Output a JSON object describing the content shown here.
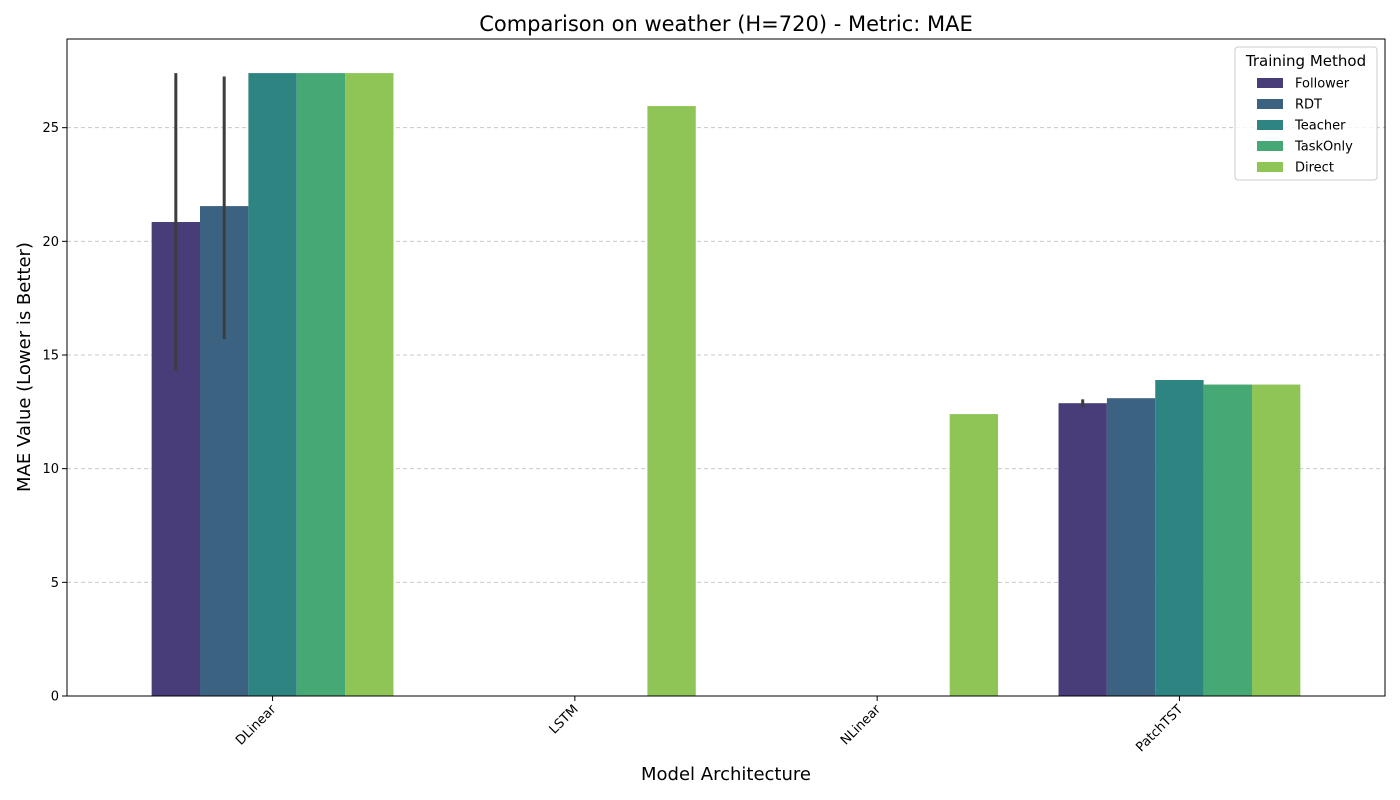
{
  "chart_data": {
    "type": "bar",
    "title": "Comparison on weather (H=720) - Metric: MAE",
    "xlabel": "Model Architecture",
    "ylabel": "MAE Value (Lower is Better)",
    "categories": [
      "DLinear",
      "LSTM",
      "NLinear",
      "PatchTST"
    ],
    "ylim": [
      0,
      28.9
    ],
    "yticks": [
      0,
      5,
      10,
      15,
      20,
      25
    ],
    "grid": "y-dashed",
    "legend": {
      "title": "Training Method",
      "position": "top-right"
    },
    "series": [
      {
        "name": "Follower",
        "color": "#483d78",
        "values": [
          20.85,
          null,
          null,
          12.88
        ],
        "err": [
          [
            14.3,
            27.4
          ],
          null,
          null,
          [
            12.7,
            13.05
          ]
        ]
      },
      {
        "name": "RDT",
        "color": "#3b6381",
        "values": [
          21.55,
          null,
          null,
          13.1
        ],
        "err": [
          [
            15.7,
            27.25
          ],
          null,
          null,
          null
        ]
      },
      {
        "name": "Teacher",
        "color": "#2d8480",
        "values": [
          27.4,
          null,
          null,
          13.9
        ],
        "err": [
          null,
          null,
          null,
          null
        ]
      },
      {
        "name": "TaskOnly",
        "color": "#46a874",
        "values": [
          27.4,
          null,
          null,
          13.7
        ],
        "err": [
          null,
          null,
          null,
          null
        ]
      },
      {
        "name": "Direct",
        "color": "#8fc556",
        "values": [
          27.4,
          25.95,
          12.4,
          13.7
        ],
        "err": [
          null,
          null,
          null,
          null
        ]
      }
    ]
  }
}
